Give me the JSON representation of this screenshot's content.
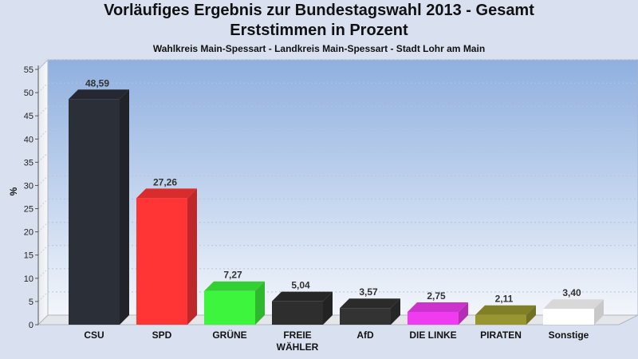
{
  "chart_data": {
    "type": "bar",
    "title": "Vorläufiges Ergebnis zur Bundestagswahl 2013 - Gesamt",
    "title_line2": "Erststimmen in Prozent",
    "subtitle": "Wahlkreis Main-Spessart - Landkreis Main-Spessart - Stadt Lohr am Main",
    "ylabel": "%",
    "xlabel": "",
    "ylim": [
      0,
      55
    ],
    "yticks": [
      0,
      5,
      10,
      15,
      20,
      25,
      30,
      35,
      40,
      45,
      50,
      55
    ],
    "grid": true,
    "categories": [
      "CSU",
      "SPD",
      "GRÜNE",
      "FREIE WÄHLER",
      "AfD",
      "DIE LINKE",
      "PIRATEN",
      "Sonstige"
    ],
    "category_lines": [
      [
        "CSU"
      ],
      [
        "SPD"
      ],
      [
        "GRÜNE"
      ],
      [
        "FREIE",
        "WÄHLER"
      ],
      [
        "AfD"
      ],
      [
        "DIE LINKE"
      ],
      [
        "PIRATEN"
      ],
      [
        "Sonstige"
      ]
    ],
    "values": [
      48.59,
      27.26,
      7.27,
      5.04,
      3.57,
      2.75,
      2.11,
      3.4
    ],
    "value_labels": [
      "48,59",
      "27,26",
      "7,27",
      "5,04",
      "3,57",
      "2,75",
      "2,11",
      "3,40"
    ],
    "colors": [
      "#2b2f38",
      "#ff3535",
      "#3cf53c",
      "#2e2e2e",
      "#333333",
      "#f03cf0",
      "#98962e",
      "#ffffff"
    ]
  }
}
